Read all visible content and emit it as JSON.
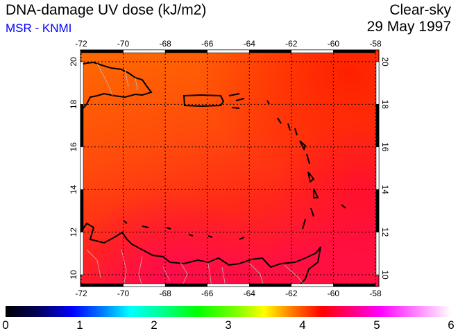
{
  "header": {
    "title": "DNA-damage UV dose (kJ/m2)",
    "credit": "MSR - KNMI",
    "sky_condition": "Clear-sky",
    "date": "29 May 1997"
  },
  "map": {
    "lon_ticks": [
      "-72",
      "-70",
      "-68",
      "-66",
      "-64",
      "-62",
      "-60",
      "-58"
    ],
    "lat_ticks": [
      "20",
      "18",
      "16",
      "14",
      "12",
      "10"
    ],
    "lon_range": [
      -72,
      -58
    ],
    "lat_range": [
      9.5,
      20.6
    ]
  },
  "colorbar": {
    "labels": [
      "0",
      "1",
      "2",
      "3",
      "4",
      "5",
      "6"
    ],
    "range": [
      0,
      6
    ]
  }
}
